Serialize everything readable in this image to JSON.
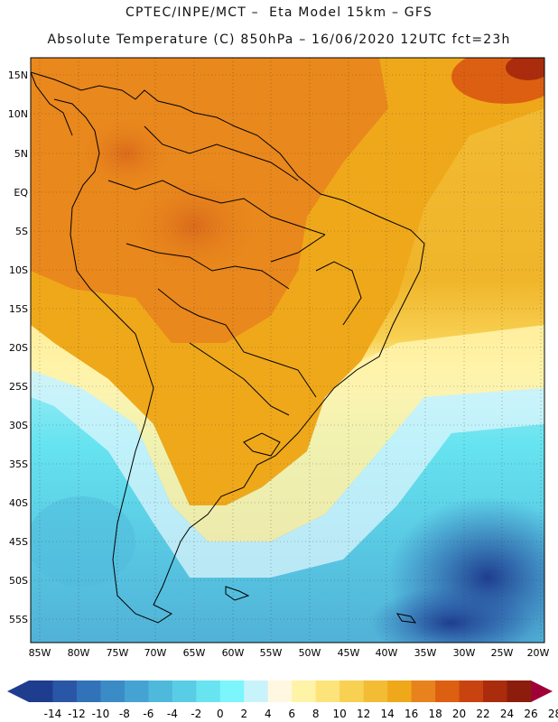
{
  "header": {
    "title_line1": "CPTEC/INPE/MCT –  Eta Model 15km – GFS",
    "title_line2": "Absolute Temperature (C) 850hPa – 16/06/2020 12UTC fct=23h"
  },
  "map": {
    "lat_labels": [
      "15N",
      "10N",
      "5N",
      "EQ",
      "5S",
      "10S",
      "15S",
      "20S",
      "25S",
      "30S",
      "35S",
      "40S",
      "45S",
      "50S",
      "55S"
    ],
    "lon_labels": [
      "85W",
      "80W",
      "75W",
      "70W",
      "65W",
      "60W",
      "55W",
      "50W",
      "45W",
      "40W",
      "35W",
      "30W",
      "25W",
      "20W"
    ],
    "lat_range": [
      -58,
      16.5
    ],
    "lon_range": [
      -86,
      -20
    ]
  },
  "colorbar": {
    "labels": [
      "-14",
      "-12",
      "-10",
      "-8",
      "-6",
      "-4",
      "-2",
      "0",
      "2",
      "4",
      "6",
      "8",
      "10",
      "12",
      "14",
      "16",
      "18",
      "20",
      "22",
      "24",
      "26",
      "28"
    ],
    "colors": [
      "#1f3d8f",
      "#2a56a8",
      "#3272b8",
      "#3a8bc6",
      "#44a3d2",
      "#4fb9dc",
      "#59cde6",
      "#67e4f0",
      "#7cf6fc",
      "#c9f3fb",
      "#fff7e0",
      "#fff3a8",
      "#fde47a",
      "#f8d052",
      "#f2bc35",
      "#efa81a",
      "#e7821d",
      "#dd5f12",
      "#c94310",
      "#aa2c0d",
      "#8c1d0d",
      "#a00038"
    ]
  }
}
